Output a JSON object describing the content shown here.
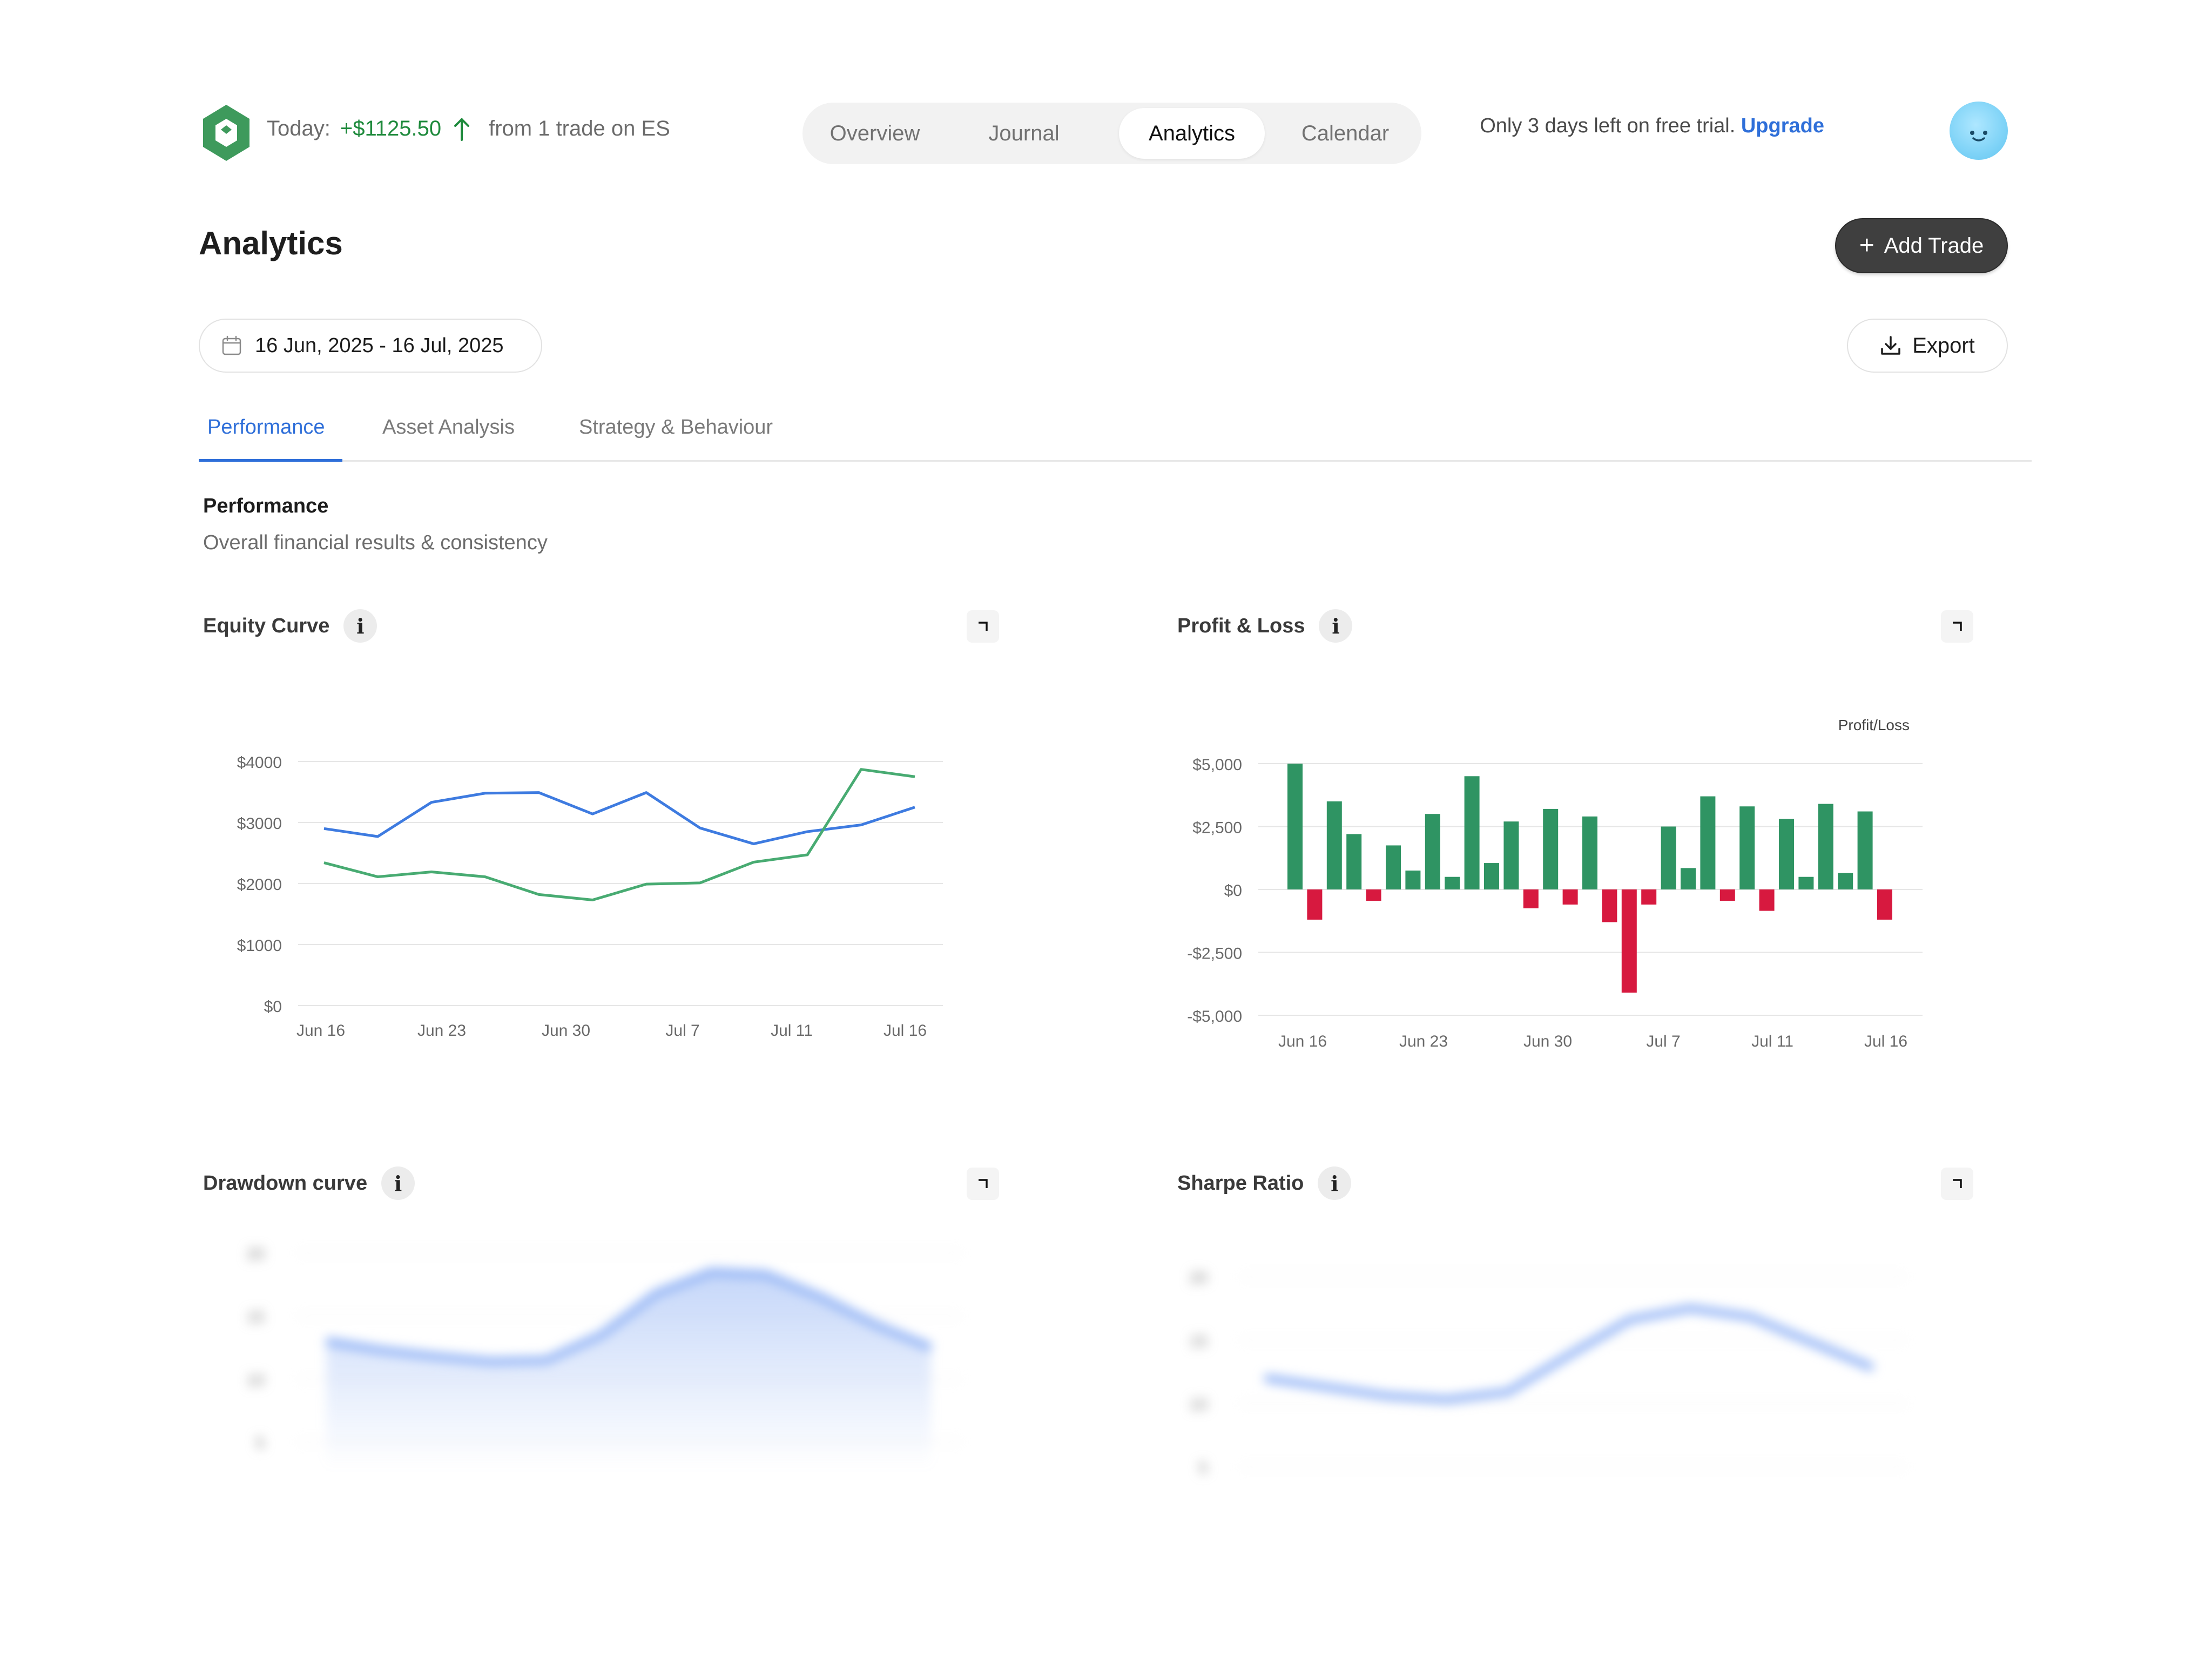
{
  "header": {
    "today_label": "Today:",
    "today_pnl": "+$1125.50",
    "today_detail": "from 1 trade on ES",
    "nav_tabs": [
      {
        "label": "Overview",
        "active": false
      },
      {
        "label": "Journal",
        "active": false
      },
      {
        "label": "Analytics",
        "active": true
      },
      {
        "label": "Calendar",
        "active": false
      }
    ],
    "trial_text": "Only 3 days left on free trial.",
    "upgrade_label": "Upgrade"
  },
  "page": {
    "title": "Analytics",
    "add_trade_label": "Add Trade",
    "date_range": "16 Jun, 2025 - 16 Jul, 2025",
    "export_label": "Export"
  },
  "subtabs": [
    {
      "label": "Performance",
      "active": true
    },
    {
      "label": "Asset Analysis",
      "active": false
    },
    {
      "label": "Strategy & Behaviour",
      "active": false
    }
  ],
  "section": {
    "title": "Performance",
    "subtitle": "Overall financial results & consistency"
  },
  "cards": {
    "equity": {
      "title": "Equity Curve"
    },
    "pnl": {
      "title": "Profit & Loss"
    },
    "drawdown": {
      "title": "Drawdown curve"
    },
    "sharpe": {
      "title": "Sharpe Ratio"
    }
  },
  "colors": {
    "accent_blue": "#2f6fd9",
    "profit_green": "#2f9463",
    "loss_red": "#d7193f",
    "line_blue": "#3e7be0",
    "line_green": "#48ab72",
    "pnl_green_text": "#1e8a3c"
  },
  "chart_data": [
    {
      "id": "equity",
      "type": "line",
      "title": "Equity Curve",
      "x_tick_labels": [
        "Jun 16",
        "Jun 23",
        "Jun 30",
        "Jul 7",
        "Jul 11",
        "Jul 16"
      ],
      "y_tick_labels": [
        "$0",
        "$1000",
        "$2000",
        "$3000",
        "$4000"
      ],
      "ylim": [
        0,
        4000
      ],
      "grid": true,
      "series": [
        {
          "color": "#3e7be0",
          "values": [
            2900,
            2770,
            3330,
            3480,
            3490,
            3140,
            3490,
            2910,
            2650,
            2850,
            2960,
            3250
          ]
        },
        {
          "color": "#48ab72",
          "values": [
            2340,
            2110,
            2190,
            2110,
            1820,
            1730,
            1990,
            2010,
            2350,
            2470,
            3870,
            3750
          ]
        }
      ]
    },
    {
      "id": "pnl",
      "type": "bar",
      "title": "Profit & Loss",
      "legend_label": "Profit/Loss",
      "x_tick_labels": [
        "Jun 16",
        "Jun 23",
        "Jun 30",
        "Jul 7",
        "Jul 11",
        "Jul 16"
      ],
      "y_tick_labels": [
        "$5,000",
        "$2,500",
        "$0",
        "-$2,500",
        "-$5,000"
      ],
      "ylim": [
        -5000,
        5000
      ],
      "grid": true,
      "values": [
        5000,
        -1200,
        3500,
        2200,
        -450,
        1750,
        750,
        3000,
        500,
        4500,
        1050,
        2700,
        -750,
        3200,
        -600,
        2900,
        -1300,
        -4100,
        -600,
        2500,
        850,
        3700,
        -450,
        3300,
        -850,
        2800,
        500,
        3400,
        650,
        3100,
        -1200
      ],
      "positive_color": "#2f9463",
      "negative_color": "#d7193f"
    },
    {
      "id": "drawdown",
      "type": "area",
      "title": "Drawdown curve",
      "y_tick_labels": [
        "20",
        "15",
        "10",
        "5"
      ],
      "ylim": [
        0,
        20
      ],
      "blurred": true,
      "values": [
        13,
        12.3,
        11.8,
        11.4,
        11.5,
        13.5,
        16.8,
        18.5,
        18.3,
        16.5,
        14.3,
        12.5
      ]
    },
    {
      "id": "sharpe",
      "type": "line",
      "title": "Sharpe Ratio",
      "y_tick_labels": [
        "20",
        "15",
        "10",
        "5"
      ],
      "ylim": [
        0,
        20
      ],
      "blurred": true,
      "values": [
        12,
        11.3,
        10.6,
        10.3,
        10.9,
        13.8,
        16.6,
        17.5,
        16.8,
        14.8,
        12.8
      ]
    }
  ]
}
